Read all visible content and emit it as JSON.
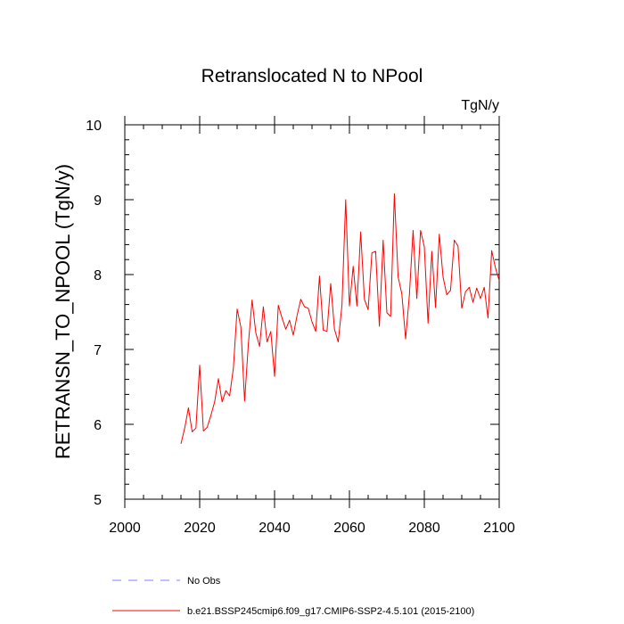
{
  "chart_data": {
    "type": "line",
    "title": "Retranslocated N to NPool",
    "units": "TgN/y",
    "xlabel": "",
    "ylabel": "RETRANSN_TO_NPOOL  (TgN/y)",
    "xlim": [
      2000,
      2100
    ],
    "ylim": [
      5,
      10
    ],
    "x_ticks": [
      2000,
      2020,
      2040,
      2060,
      2080,
      2100
    ],
    "y_ticks": [
      5,
      6,
      7,
      8,
      9,
      10
    ],
    "x_tick_labels": [
      "2000",
      "2020",
      "2040",
      "2060",
      "2080",
      "2100"
    ],
    "y_tick_labels": [
      "5",
      "6",
      "7",
      "8",
      "9",
      "10"
    ],
    "grid": false,
    "legend_position": "bottom",
    "legend": [
      {
        "label": "No Obs",
        "color": "#8080ff",
        "style": "dashed"
      },
      {
        "label": "b.e21.BSSP245cmip6.f09_g17.CMIP6-SSP2-4.5.101 (2015-2100)",
        "color": "#ff0000",
        "style": "solid"
      }
    ],
    "series": [
      {
        "name": "b.e21.BSSP245cmip6.f09_g17.CMIP6-SSP2-4.5.101 (2015-2100)",
        "color": "#ff0000",
        "x": [
          2015,
          2016,
          2017,
          2018,
          2019,
          2020,
          2021,
          2022,
          2023,
          2024,
          2025,
          2026,
          2027,
          2028,
          2029,
          2030,
          2031,
          2032,
          2033,
          2034,
          2035,
          2036,
          2037,
          2038,
          2039,
          2040,
          2041,
          2042,
          2043,
          2044,
          2045,
          2046,
          2047,
          2048,
          2049,
          2050,
          2051,
          2052,
          2053,
          2054,
          2055,
          2056,
          2057,
          2058,
          2059,
          2060,
          2061,
          2062,
          2063,
          2064,
          2065,
          2066,
          2067,
          2068,
          2069,
          2070,
          2071,
          2072,
          2073,
          2074,
          2075,
          2076,
          2077,
          2078,
          2079,
          2080,
          2081,
          2082,
          2083,
          2084,
          2085,
          2086,
          2087,
          2088,
          2089,
          2090,
          2091,
          2092,
          2093,
          2094,
          2095,
          2096,
          2097,
          2098,
          2099,
          2100
        ],
        "values": [
          5.74,
          5.95,
          6.22,
          5.9,
          5.95,
          6.79,
          5.91,
          5.96,
          6.12,
          6.3,
          6.61,
          6.3,
          6.45,
          6.38,
          6.75,
          7.54,
          7.3,
          6.31,
          7.07,
          7.66,
          7.22,
          7.04,
          7.57,
          7.1,
          7.24,
          6.64,
          7.59,
          7.42,
          7.27,
          7.39,
          7.19,
          7.45,
          7.67,
          7.57,
          7.55,
          7.37,
          7.24,
          7.98,
          7.26,
          7.24,
          7.88,
          7.27,
          7.1,
          7.59,
          9.0,
          7.58,
          8.11,
          7.58,
          8.57,
          7.67,
          7.53,
          8.29,
          8.31,
          7.31,
          8.46,
          7.49,
          7.44,
          9.08,
          7.97,
          7.74,
          7.14,
          7.72,
          8.59,
          7.68,
          8.59,
          8.37,
          7.35,
          8.31,
          7.56,
          8.54,
          7.97,
          7.73,
          7.79,
          8.46,
          8.38,
          7.55,
          7.77,
          7.83,
          7.63,
          7.82,
          7.68,
          7.83,
          7.42,
          8.32,
          8.09,
          7.92
        ]
      }
    ]
  }
}
